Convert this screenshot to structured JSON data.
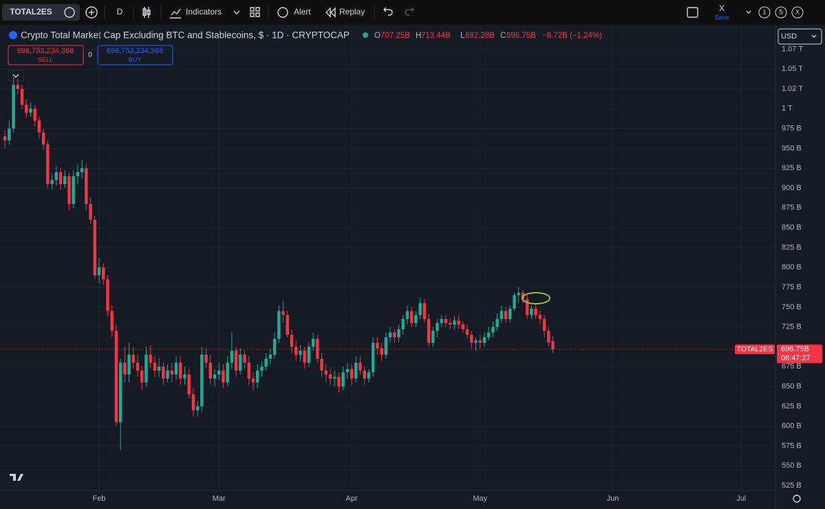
{
  "toolbar": {
    "symbol": "TOTAL2ES",
    "interval": "D",
    "indicators": "Indicators",
    "alert": "Alert",
    "replay": "Replay",
    "layout": "X",
    "save": "Save",
    "badges": [
      "1",
      "S",
      "X"
    ]
  },
  "legend": {
    "title": "Crypto Total Market Cap Excluding BTC and Stablecoins, $ · 1D · CRYPTOCAP",
    "open_label": "O",
    "open": "707.25B",
    "high_label": "H",
    "high": "713.44B",
    "low_label": "L",
    "low": "692.28B",
    "close_label": "C",
    "close": "696.75B",
    "change": "−8.72B (−1.24%)"
  },
  "trade": {
    "sell_price": "696,753,234,368",
    "sell": "SELL",
    "spread": "0",
    "buy_price": "696,753,234,368",
    "buy": "BUY"
  },
  "currency": "USD",
  "price_tag": {
    "symbol": "TOTAL2ES",
    "price": "696.75B",
    "countdown": "08:47:27"
  },
  "chart_data": {
    "type": "candlestick",
    "up_color": "#22ab94",
    "down_color": "#f23645",
    "grid": true,
    "x": [
      -22,
      -21,
      -20,
      -19,
      -18,
      -17,
      -16,
      -15,
      -14,
      -13,
      -12,
      -11,
      -10,
      -9,
      -8,
      -7,
      -6,
      -5,
      -4,
      -3,
      -2,
      -1,
      0,
      1,
      2,
      3,
      4,
      5,
      6,
      7,
      8,
      9,
      10,
      11,
      12,
      13,
      14,
      15,
      16,
      17,
      18,
      19,
      20,
      21,
      22,
      23,
      24,
      25,
      26,
      27,
      28,
      29,
      30,
      31,
      32,
      33,
      34,
      35,
      36,
      37,
      38,
      39,
      40,
      41,
      42,
      43,
      44,
      45,
      46,
      47,
      48,
      49,
      50,
      51,
      52,
      53,
      54,
      55,
      56,
      57,
      58,
      59,
      60,
      61,
      62,
      63,
      64,
      65,
      66,
      67,
      68,
      69,
      70,
      71,
      72,
      73,
      74,
      75,
      76,
      77,
      78,
      79,
      80,
      81,
      82,
      83,
      84,
      85,
      86,
      87,
      88,
      89,
      90,
      91,
      92,
      93,
      94,
      95,
      96,
      97,
      98,
      99,
      100,
      101,
      102,
      103,
      104,
      105,
      106
    ],
    "open": [
      965,
      960,
      975,
      1030,
      1025,
      1005,
      995,
      1000,
      985,
      970,
      955,
      905,
      910,
      920,
      905,
      915,
      880,
      915,
      920,
      925,
      880,
      860,
      790,
      800,
      785,
      745,
      720,
      605,
      680,
      665,
      690,
      680,
      670,
      655,
      690,
      680,
      670,
      675,
      660,
      670,
      665,
      680,
      660,
      665,
      640,
      620,
      625,
      690,
      680,
      660,
      665,
      670,
      655,
      680,
      695,
      670,
      690,
      680,
      660,
      655,
      670,
      675,
      685,
      690,
      710,
      745,
      740,
      715,
      700,
      690,
      695,
      680,
      700,
      710,
      685,
      670,
      665,
      660,
      662,
      650,
      668,
      672,
      660,
      680,
      670,
      660,
      668,
      705,
      698,
      690,
      712,
      718,
      712,
      722,
      735,
      745,
      730,
      740,
      755,
      735,
      705,
      720,
      730,
      735,
      730,
      728,
      733,
      728,
      722,
      715,
      705,
      708,
      705,
      712,
      718,
      725,
      735,
      745,
      735,
      748,
      765,
      768,
      760,
      740,
      748,
      740,
      735,
      720,
      707.25
    ],
    "high": [
      972,
      985,
      1040,
      1038,
      1030,
      1012,
      1008,
      1005,
      990,
      975,
      960,
      918,
      928,
      925,
      922,
      920,
      922,
      930,
      935,
      930,
      888,
      865,
      812,
      805,
      790,
      752,
      728,
      685,
      700,
      705,
      700,
      690,
      675,
      700,
      702,
      688,
      685,
      680,
      678,
      680,
      688,
      688,
      675,
      672,
      648,
      632,
      700,
      698,
      690,
      672,
      680,
      678,
      688,
      718,
      700,
      698,
      695,
      688,
      668,
      678,
      682,
      692,
      698,
      718,
      752,
      758,
      745,
      722,
      708,
      702,
      700,
      705,
      718,
      715,
      692,
      678,
      672,
      670,
      668,
      675,
      680,
      678,
      688,
      688,
      675,
      672,
      712,
      712,
      705,
      718,
      725,
      722,
      728,
      740,
      752,
      750,
      745,
      762,
      760,
      742,
      725,
      735,
      740,
      740,
      735,
      738,
      740,
      732,
      728,
      720,
      712,
      715,
      718,
      725,
      732,
      742,
      752,
      750,
      752,
      768,
      775,
      772,
      765,
      752,
      755,
      745,
      740,
      725,
      713.44
    ],
    "low": [
      950,
      955,
      970,
      1018,
      1000,
      988,
      990,
      978,
      962,
      948,
      900,
      898,
      903,
      898,
      900,
      872,
      875,
      905,
      912,
      872,
      855,
      785,
      780,
      778,
      738,
      712,
      600,
      570,
      655,
      655,
      672,
      662,
      645,
      650,
      672,
      662,
      662,
      652,
      655,
      655,
      658,
      652,
      652,
      635,
      612,
      612,
      618,
      672,
      652,
      650,
      658,
      648,
      650,
      672,
      662,
      665,
      672,
      652,
      645,
      648,
      662,
      670,
      678,
      685,
      705,
      730,
      712,
      692,
      682,
      682,
      672,
      675,
      695,
      680,
      662,
      655,
      652,
      650,
      642,
      645,
      660,
      652,
      655,
      665,
      652,
      655,
      662,
      690,
      682,
      685,
      705,
      705,
      706,
      715,
      728,
      725,
      725,
      735,
      730,
      700,
      700,
      712,
      725,
      725,
      722,
      722,
      722,
      718,
      710,
      698,
      695,
      698,
      700,
      708,
      712,
      720,
      730,
      730,
      730,
      745,
      755,
      755,
      735,
      735,
      735,
      728,
      712,
      700,
      692.28
    ],
    "close": [
      960,
      975,
      1030,
      1025,
      1005,
      995,
      1000,
      985,
      970,
      955,
      905,
      910,
      920,
      905,
      915,
      880,
      915,
      920,
      925,
      880,
      860,
      790,
      800,
      785,
      745,
      720,
      605,
      680,
      665,
      690,
      680,
      670,
      655,
      690,
      680,
      670,
      675,
      660,
      670,
      665,
      680,
      660,
      665,
      640,
      620,
      625,
      690,
      680,
      660,
      665,
      670,
      655,
      680,
      695,
      670,
      690,
      680,
      660,
      655,
      670,
      675,
      685,
      690,
      710,
      745,
      740,
      715,
      700,
      690,
      695,
      680,
      700,
      710,
      685,
      670,
      665,
      660,
      662,
      650,
      668,
      672,
      660,
      680,
      670,
      660,
      668,
      705,
      698,
      690,
      712,
      718,
      712,
      722,
      735,
      745,
      730,
      740,
      755,
      735,
      705,
      720,
      730,
      735,
      730,
      728,
      733,
      728,
      722,
      715,
      705,
      708,
      705,
      712,
      718,
      725,
      735,
      745,
      735,
      748,
      765,
      768,
      760,
      740,
      748,
      740,
      735,
      720,
      705.47,
      696.75
    ],
    "xlim": [
      -23.15,
      158
    ],
    "xticks": [
      {
        "value": 0,
        "label": "Feb"
      },
      {
        "value": 28,
        "label": "Mar"
      },
      {
        "value": 59,
        "label": "Apr"
      },
      {
        "value": 89,
        "label": "May"
      },
      {
        "value": 120,
        "label": "Jun"
      },
      {
        "value": 150,
        "label": "Jul"
      }
    ],
    "ylim": [
      519,
      1104
    ],
    "yticks": [
      {
        "value": 1075,
        "label": "1.07 T"
      },
      {
        "value": 1050,
        "label": "1.05 T"
      },
      {
        "value": 1025,
        "label": "1.02 T"
      },
      {
        "value": 1000,
        "label": "1 T"
      },
      {
        "value": 975,
        "label": "975 B"
      },
      {
        "value": 950,
        "label": "950 B"
      },
      {
        "value": 925,
        "label": "925 B"
      },
      {
        "value": 900,
        "label": "900 B"
      },
      {
        "value": 875,
        "label": "875 B"
      },
      {
        "value": 850,
        "label": "850 B"
      },
      {
        "value": 825,
        "label": "825 B"
      },
      {
        "value": 800,
        "label": "800 B"
      },
      {
        "value": 775,
        "label": "775 B"
      },
      {
        "value": 750,
        "label": "750 B"
      },
      {
        "value": 725,
        "label": "725 B"
      },
      {
        "value": 675,
        "label": "675 B"
      },
      {
        "value": 650,
        "label": "650 B"
      },
      {
        "value": 625,
        "label": "625 B"
      },
      {
        "value": 600,
        "label": "600 B"
      },
      {
        "value": 575,
        "label": "575 B"
      },
      {
        "value": 550,
        "label": "550 B"
      },
      {
        "value": 525,
        "label": "525 B"
      }
    ]
  }
}
